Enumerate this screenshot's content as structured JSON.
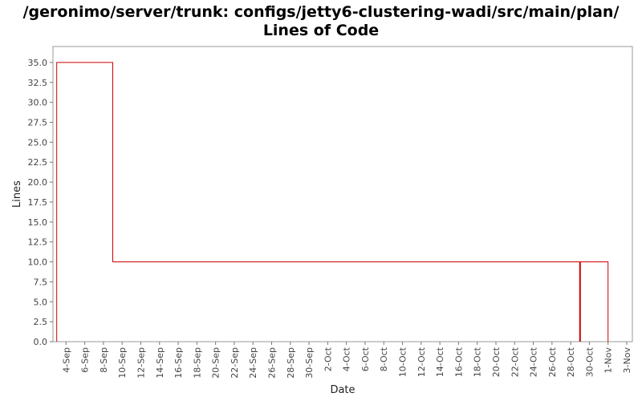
{
  "chart_data": {
    "type": "line",
    "title_line1": "/geronimo/server/trunk: configs/jetty6-clustering-wadi/src/main/plan/",
    "title_line2": "Lines of Code",
    "xlabel": "Date",
    "ylabel": "Lines",
    "ylim": [
      0,
      37
    ],
    "y_ticks": [
      "0.0",
      "2.5",
      "5.0",
      "7.5",
      "10.0",
      "12.5",
      "15.0",
      "17.5",
      "20.0",
      "22.5",
      "25.0",
      "27.5",
      "30.0",
      "32.5",
      "35.0"
    ],
    "x_ticks": [
      "4-Sep",
      "6-Sep",
      "8-Sep",
      "10-Sep",
      "12-Sep",
      "14-Sep",
      "16-Sep",
      "18-Sep",
      "20-Sep",
      "22-Sep",
      "24-Sep",
      "26-Sep",
      "28-Sep",
      "30-Sep",
      "2-Oct",
      "4-Oct",
      "6-Oct",
      "8-Oct",
      "10-Oct",
      "12-Oct",
      "14-Oct",
      "16-Oct",
      "18-Oct",
      "20-Oct",
      "22-Oct",
      "24-Oct",
      "26-Oct",
      "28-Oct",
      "30-Oct",
      "1-Nov",
      "3-Nov"
    ],
    "grid": false,
    "series": [
      {
        "color": "#cc0000",
        "points": [
          {
            "x": "3-Sep",
            "y": 0
          },
          {
            "x": "3-Sep",
            "y": 35
          },
          {
            "x": "9-Sep",
            "y": 35
          },
          {
            "x": "9-Sep",
            "y": 10
          },
          {
            "x": "29-Oct",
            "y": 10
          },
          {
            "x": "29-Oct",
            "y": 0
          },
          {
            "x": "29-Oct",
            "y": 10
          },
          {
            "x": "1-Nov",
            "y": 10
          },
          {
            "x": "1-Nov",
            "y": 0
          }
        ]
      }
    ]
  }
}
